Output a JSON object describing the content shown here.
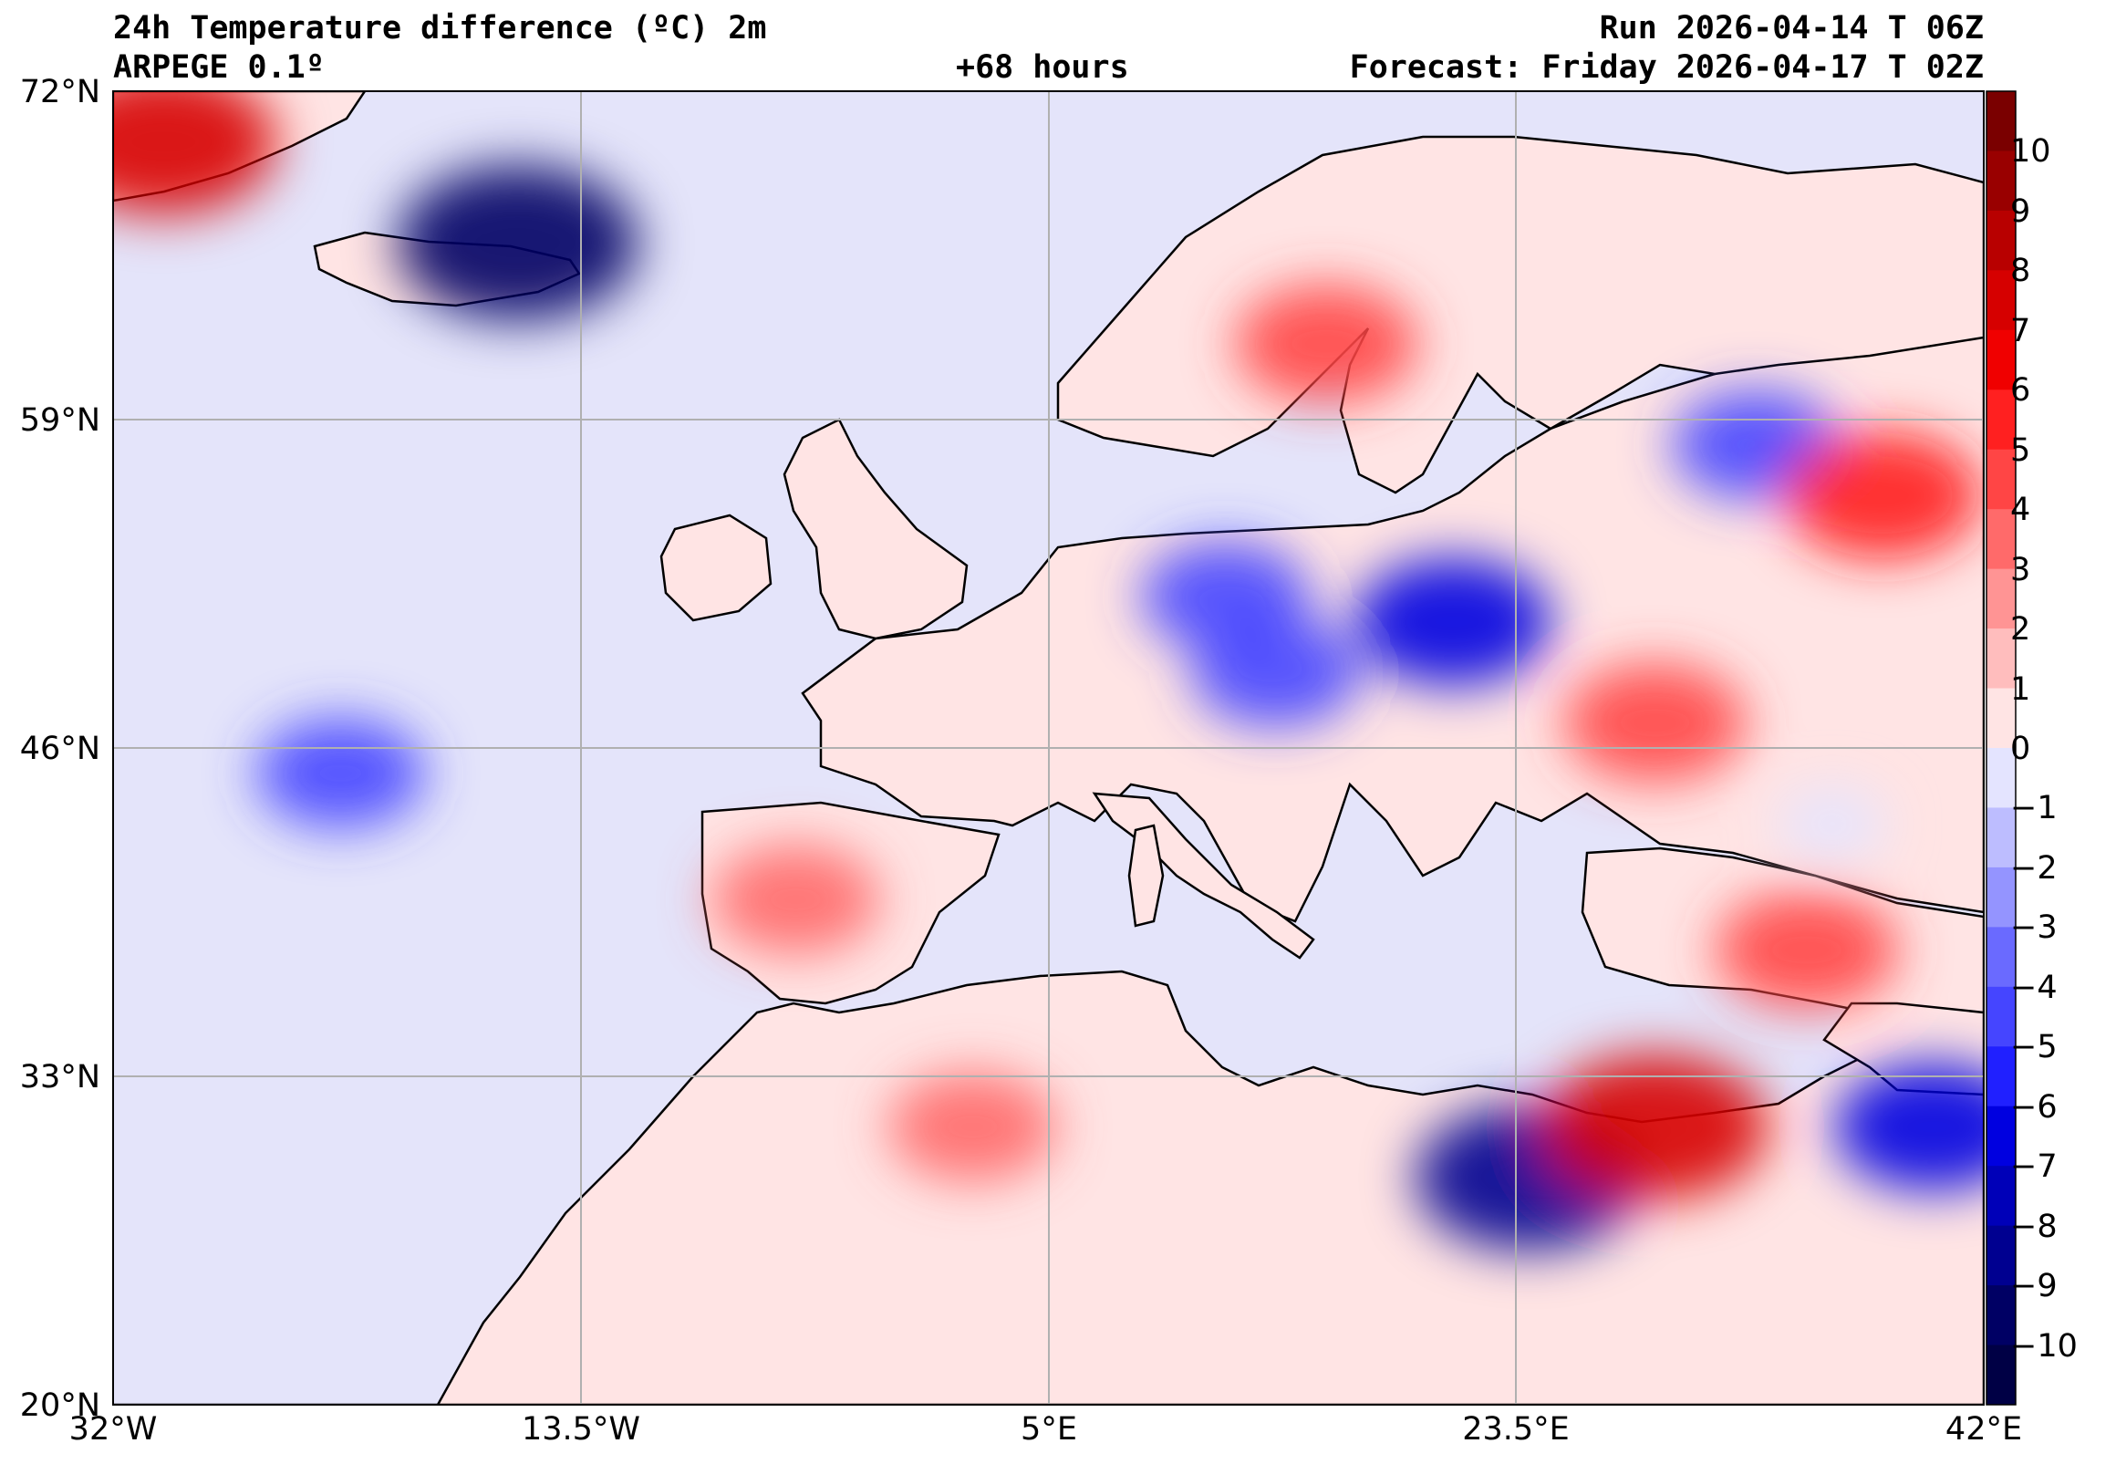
{
  "header": {
    "title": "24h Temperature difference (ºC) 2m",
    "model": "ARPEGE 0.1º",
    "run": "Run 2026-04-14 T 06Z",
    "lead": "+68 hours",
    "forecast": "Forecast: Friday 2026-04-17 T 02Z"
  },
  "axes": {
    "lat_labels": [
      "72°N",
      "59°N",
      "46°N",
      "33°N",
      "20°N"
    ],
    "lon_labels": [
      "32°W",
      "13.5°W",
      "5°E",
      "23.5°E",
      "42°E"
    ]
  },
  "colorbar": {
    "labels": [
      "10",
      "9",
      "8",
      "7",
      "6",
      "5",
      "4",
      "3",
      "2",
      "1",
      "0",
      "−1",
      "−2",
      "−3",
      "−4",
      "−5",
      "−6",
      "−7",
      "−8",
      "−9",
      "−10"
    ],
    "colors": [
      "#7a0000",
      "#990000",
      "#b80000",
      "#d60000",
      "#f00000",
      "#ff2020",
      "#ff4545",
      "#ff6a6a",
      "#ff9494",
      "#ffbdbd",
      "#ffe4e4",
      "#e4e4ff",
      "#bdbdff",
      "#9494ff",
      "#6a6aff",
      "#4545ff",
      "#2020ff",
      "#0000e0",
      "#0000b8",
      "#000090",
      "#000064",
      "#000045"
    ],
    "ocean_color": "#e4e4fa",
    "land_color": "#ffe4e4"
  },
  "chart_data": {
    "type": "heatmap",
    "variable": "24h Temperature difference (ºC) 2m",
    "lat_range": [
      20,
      72
    ],
    "lon_range": [
      -32,
      42
    ],
    "color_range": [
      -11,
      11
    ],
    "regions": [
      {
        "lon": 12,
        "lat": 52,
        "value": -4
      },
      {
        "lon": 21,
        "lat": 51,
        "value": -6
      },
      {
        "lon": 14,
        "lat": 49,
        "value": -4
      },
      {
        "lon": 29,
        "lat": 47,
        "value": 5
      },
      {
        "lon": 36,
        "lat": 43,
        "value": 0
      },
      {
        "lon": 35,
        "lat": 38,
        "value": 5
      },
      {
        "lon": 24,
        "lat": 29,
        "value": -8
      },
      {
        "lon": 29,
        "lat": 31,
        "value": 8
      },
      {
        "lon": 40,
        "lat": 31,
        "value": -6
      },
      {
        "lon": 2,
        "lat": 31,
        "value": 4
      },
      {
        "lon": -5,
        "lat": 40,
        "value": 4
      },
      {
        "lon": -23,
        "lat": 45,
        "value": -4
      },
      {
        "lon": -16,
        "lat": 66,
        "value": -9
      },
      {
        "lon": 16,
        "lat": 62,
        "value": 5
      },
      {
        "lon": 33,
        "lat": 58,
        "value": -4
      },
      {
        "lon": -30,
        "lat": 70,
        "value": 8
      },
      {
        "lon": 38,
        "lat": 56,
        "value": 6
      }
    ]
  }
}
